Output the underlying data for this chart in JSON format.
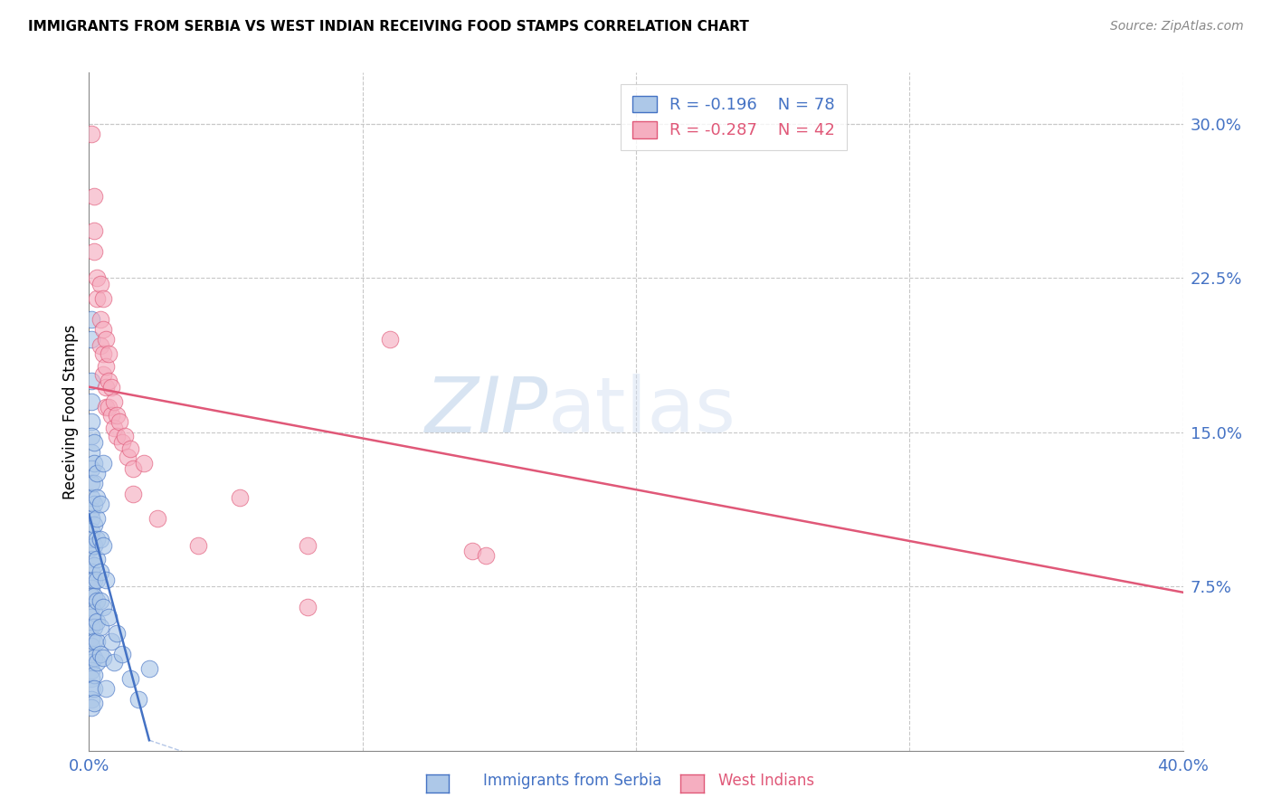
{
  "title": "IMMIGRANTS FROM SERBIA VS WEST INDIAN RECEIVING FOOD STAMPS CORRELATION CHART",
  "source": "Source: ZipAtlas.com",
  "ylabel": "Receiving Food Stamps",
  "ytick_labels": [
    "7.5%",
    "15.0%",
    "22.5%",
    "30.0%"
  ],
  "ytick_values": [
    0.075,
    0.15,
    0.225,
    0.3
  ],
  "xlim": [
    0.0,
    0.4
  ],
  "ylim": [
    -0.005,
    0.325
  ],
  "legend_r_serbia": "-0.196",
  "legend_n_serbia": "78",
  "legend_r_west": "-0.287",
  "legend_n_west": "42",
  "serbia_color": "#adc8e8",
  "west_color": "#f5aec0",
  "serbia_line_color": "#4472c4",
  "west_line_color": "#e05878",
  "serbia_line_x": [
    0.0,
    0.022
  ],
  "serbia_line_y": [
    0.11,
    0.0
  ],
  "west_line_x": [
    0.0,
    0.4
  ],
  "west_line_y": [
    0.172,
    0.072
  ],
  "serbia_dots": [
    [
      0.001,
      0.205
    ],
    [
      0.001,
      0.195
    ],
    [
      0.001,
      0.175
    ],
    [
      0.001,
      0.165
    ],
    [
      0.001,
      0.155
    ],
    [
      0.001,
      0.148
    ],
    [
      0.001,
      0.14
    ],
    [
      0.001,
      0.132
    ],
    [
      0.001,
      0.125
    ],
    [
      0.001,
      0.118
    ],
    [
      0.001,
      0.112
    ],
    [
      0.001,
      0.108
    ],
    [
      0.001,
      0.102
    ],
    [
      0.001,
      0.098
    ],
    [
      0.001,
      0.094
    ],
    [
      0.001,
      0.088
    ],
    [
      0.001,
      0.082
    ],
    [
      0.001,
      0.078
    ],
    [
      0.001,
      0.074
    ],
    [
      0.001,
      0.07
    ],
    [
      0.001,
      0.065
    ],
    [
      0.001,
      0.06
    ],
    [
      0.001,
      0.055
    ],
    [
      0.001,
      0.05
    ],
    [
      0.001,
      0.046
    ],
    [
      0.001,
      0.042
    ],
    [
      0.001,
      0.038
    ],
    [
      0.001,
      0.034
    ],
    [
      0.001,
      0.03
    ],
    [
      0.001,
      0.025
    ],
    [
      0.001,
      0.02
    ],
    [
      0.001,
      0.016
    ],
    [
      0.002,
      0.145
    ],
    [
      0.002,
      0.135
    ],
    [
      0.002,
      0.125
    ],
    [
      0.002,
      0.115
    ],
    [
      0.002,
      0.105
    ],
    [
      0.002,
      0.095
    ],
    [
      0.002,
      0.085
    ],
    [
      0.002,
      0.078
    ],
    [
      0.002,
      0.07
    ],
    [
      0.002,
      0.062
    ],
    [
      0.002,
      0.055
    ],
    [
      0.002,
      0.048
    ],
    [
      0.002,
      0.04
    ],
    [
      0.002,
      0.032
    ],
    [
      0.002,
      0.025
    ],
    [
      0.002,
      0.018
    ],
    [
      0.003,
      0.13
    ],
    [
      0.003,
      0.118
    ],
    [
      0.003,
      0.108
    ],
    [
      0.003,
      0.098
    ],
    [
      0.003,
      0.088
    ],
    [
      0.003,
      0.078
    ],
    [
      0.003,
      0.068
    ],
    [
      0.003,
      0.058
    ],
    [
      0.003,
      0.048
    ],
    [
      0.003,
      0.038
    ],
    [
      0.004,
      0.115
    ],
    [
      0.004,
      0.098
    ],
    [
      0.004,
      0.082
    ],
    [
      0.004,
      0.068
    ],
    [
      0.004,
      0.055
    ],
    [
      0.004,
      0.042
    ],
    [
      0.005,
      0.135
    ],
    [
      0.005,
      0.095
    ],
    [
      0.005,
      0.065
    ],
    [
      0.005,
      0.04
    ],
    [
      0.006,
      0.078
    ],
    [
      0.007,
      0.06
    ],
    [
      0.008,
      0.048
    ],
    [
      0.009,
      0.038
    ],
    [
      0.01,
      0.052
    ],
    [
      0.012,
      0.042
    ],
    [
      0.015,
      0.03
    ],
    [
      0.018,
      0.02
    ],
    [
      0.022,
      0.035
    ],
    [
      0.006,
      0.025
    ]
  ],
  "west_dots": [
    [
      0.001,
      0.295
    ],
    [
      0.002,
      0.265
    ],
    [
      0.002,
      0.248
    ],
    [
      0.002,
      0.238
    ],
    [
      0.003,
      0.225
    ],
    [
      0.003,
      0.215
    ],
    [
      0.004,
      0.222
    ],
    [
      0.004,
      0.205
    ],
    [
      0.004,
      0.192
    ],
    [
      0.005,
      0.215
    ],
    [
      0.005,
      0.2
    ],
    [
      0.005,
      0.188
    ],
    [
      0.005,
      0.178
    ],
    [
      0.006,
      0.195
    ],
    [
      0.006,
      0.182
    ],
    [
      0.006,
      0.172
    ],
    [
      0.006,
      0.162
    ],
    [
      0.007,
      0.188
    ],
    [
      0.007,
      0.175
    ],
    [
      0.007,
      0.162
    ],
    [
      0.008,
      0.172
    ],
    [
      0.008,
      0.158
    ],
    [
      0.009,
      0.165
    ],
    [
      0.009,
      0.152
    ],
    [
      0.01,
      0.158
    ],
    [
      0.01,
      0.148
    ],
    [
      0.011,
      0.155
    ],
    [
      0.012,
      0.145
    ],
    [
      0.013,
      0.148
    ],
    [
      0.014,
      0.138
    ],
    [
      0.015,
      0.142
    ],
    [
      0.016,
      0.132
    ],
    [
      0.016,
      0.12
    ],
    [
      0.02,
      0.135
    ],
    [
      0.025,
      0.108
    ],
    [
      0.04,
      0.095
    ],
    [
      0.055,
      0.118
    ],
    [
      0.08,
      0.095
    ],
    [
      0.11,
      0.195
    ],
    [
      0.14,
      0.092
    ],
    [
      0.145,
      0.09
    ],
    [
      0.08,
      0.065
    ]
  ]
}
